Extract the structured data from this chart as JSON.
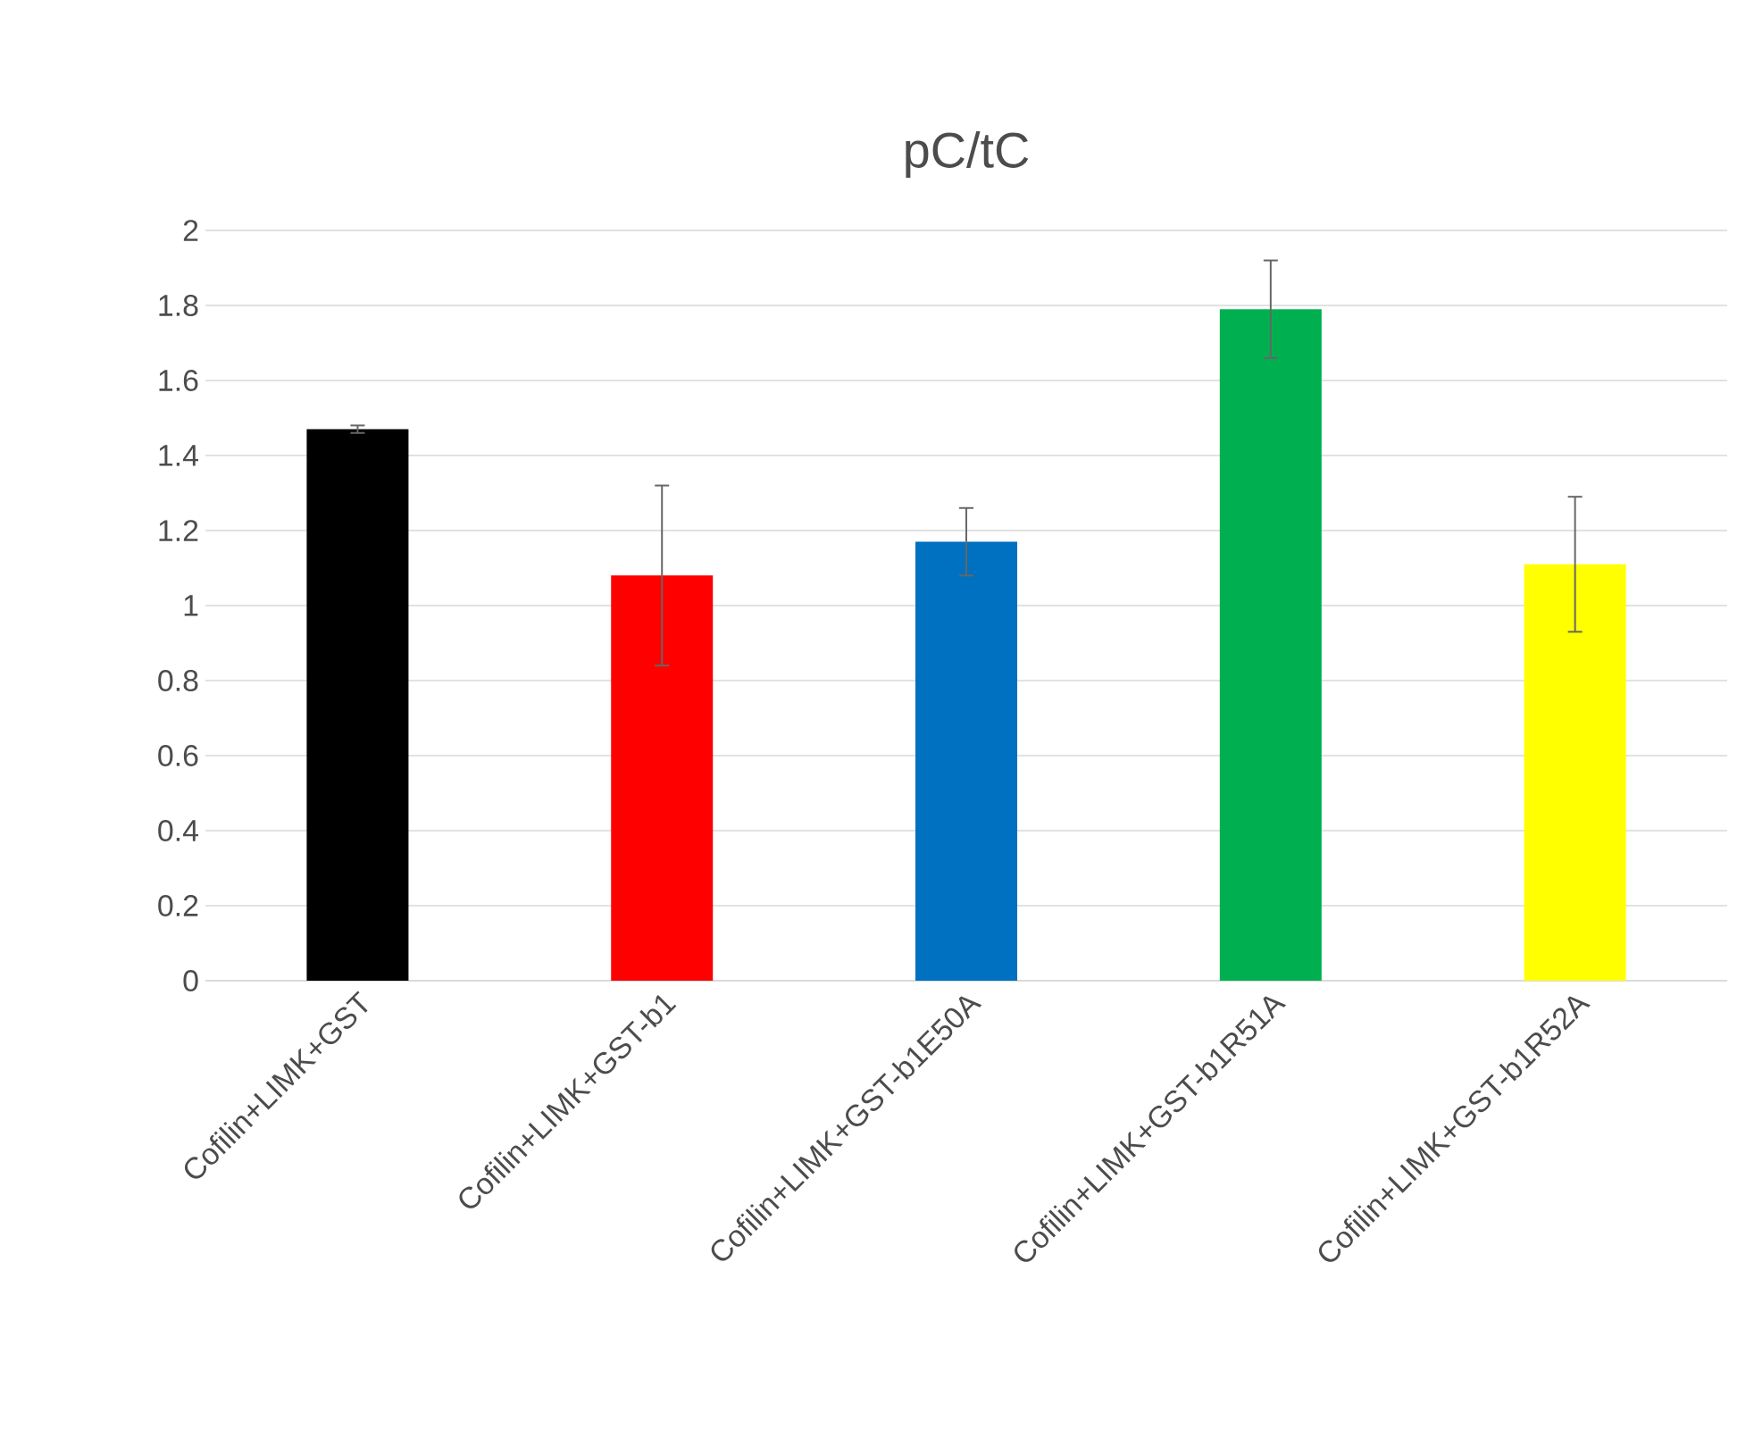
{
  "chart_data": {
    "type": "bar",
    "title": "pC/tC",
    "categories": [
      "Cofilin+LIMK+GST",
      "Cofilin+LIMK+GST-b1",
      "Cofilin+LIMK+GST-b1E50A",
      "Cofilin+LIMK+GST-b1R51A",
      "Cofilin+LIMK+GST-b1R52A"
    ],
    "values": [
      1.47,
      1.08,
      1.17,
      1.79,
      1.11
    ],
    "errors": [
      0.01,
      0.24,
      0.09,
      0.13,
      0.18
    ],
    "colors": [
      "#000000",
      "#ff0000",
      "#0070c0",
      "#00b050",
      "#ffff00"
    ],
    "ylim": [
      0,
      2
    ],
    "yticks": [
      0,
      0.2,
      0.4,
      0.6,
      0.8,
      1,
      1.2,
      1.4,
      1.6,
      1.8,
      2
    ],
    "grid": "y"
  }
}
